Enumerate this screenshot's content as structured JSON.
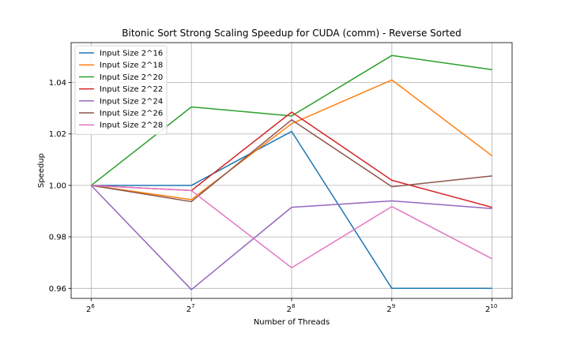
{
  "chart_data": {
    "type": "line",
    "title": "Bitonic Sort Strong Scaling Speedup for CUDA (comm) - Reverse Sorted",
    "xlabel": "Number of Threads",
    "ylabel": "Speedup",
    "x": [
      6,
      7,
      8,
      9,
      10
    ],
    "x_tick_labels": [
      {
        "base": "2",
        "exp": "6"
      },
      {
        "base": "2",
        "exp": "7"
      },
      {
        "base": "2",
        "exp": "8"
      },
      {
        "base": "2",
        "exp": "9"
      },
      {
        "base": "2",
        "exp": "10"
      }
    ],
    "y_ticks": [
      0.96,
      0.98,
      1.0,
      1.02,
      1.04
    ],
    "y_tick_labels": [
      "0.96",
      "0.98",
      "1.00",
      "1.02",
      "1.04"
    ],
    "xlim": [
      5.8,
      10.2
    ],
    "ylim": [
      0.9561,
      1.0555
    ],
    "grid": true,
    "legend_position": "top-left",
    "series": [
      {
        "name": "Input Size 2^16",
        "color": "#1f77b4",
        "values": [
          1.0,
          1.0,
          1.021,
          0.96,
          0.96
        ]
      },
      {
        "name": "Input Size 2^18",
        "color": "#ff7f0e",
        "values": [
          1.0,
          0.9945,
          1.024,
          1.041,
          1.0115
        ]
      },
      {
        "name": "Input Size 2^20",
        "color": "#2ca02c",
        "values": [
          1.0,
          1.0305,
          1.027,
          1.0505,
          1.045
        ]
      },
      {
        "name": "Input Size 2^22",
        "color": "#d62728",
        "values": [
          1.0,
          0.998,
          1.0285,
          1.002,
          0.9915
        ]
      },
      {
        "name": "Input Size 2^24",
        "color": "#9467bd",
        "values": [
          1.0,
          0.9595,
          0.9915,
          0.994,
          0.991
        ]
      },
      {
        "name": "Input Size 2^26",
        "color": "#8c564b",
        "values": [
          1.0,
          0.9937,
          1.0255,
          0.9995,
          1.0037
        ]
      },
      {
        "name": "Input Size 2^28",
        "color": "#e377c2",
        "values": [
          1.0,
          0.998,
          0.968,
          0.9918,
          0.9715
        ]
      }
    ]
  }
}
